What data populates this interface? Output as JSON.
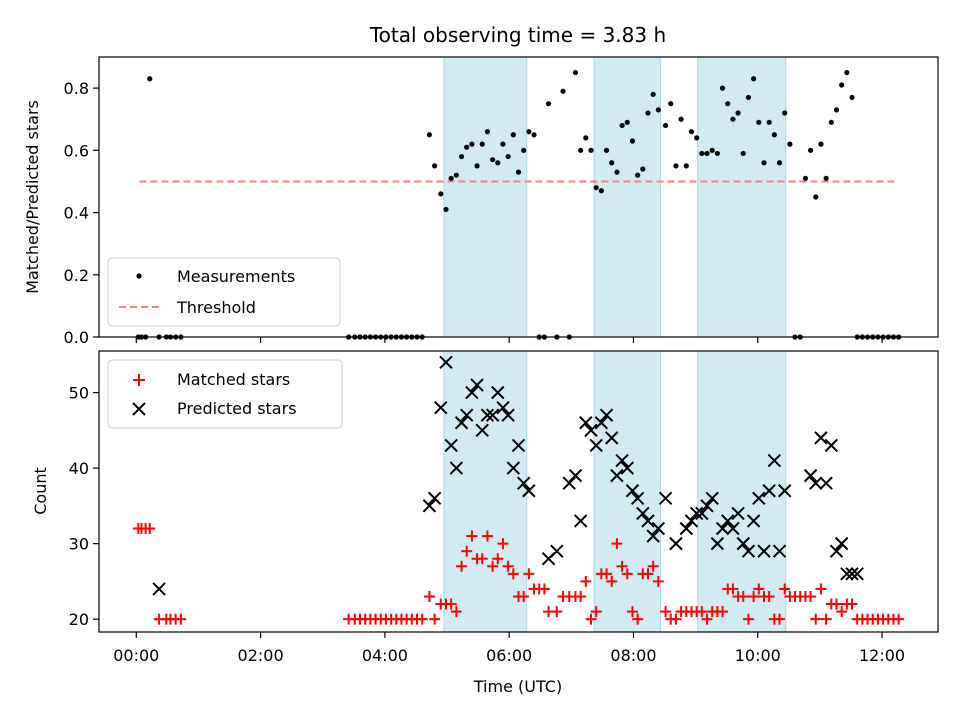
{
  "chart_data": [
    {
      "type": "scatter",
      "title": "Total observing time = 3.83 h",
      "xlabel": "",
      "ylabel": "Matched/Predicted stars",
      "xlim_hours": [
        -0.6,
        12.9
      ],
      "ylim": [
        0,
        0.9
      ],
      "yticks": [
        0.0,
        0.2,
        0.4,
        0.6,
        0.8
      ],
      "x_ticks_labels": false,
      "legend_position": "lower-left",
      "threshold": {
        "name": "Threshold",
        "value": 0.5,
        "x": [
          "00:03",
          "12:15"
        ],
        "color": "#ff7f7f",
        "style": "dashed"
      },
      "observing_windows": [
        [
          "04:57",
          "06:17"
        ],
        [
          "07:22",
          "08:26"
        ],
        [
          "09:02",
          "10:27"
        ]
      ],
      "window_color": "#add8e6",
      "series": [
        {
          "name": "Measurements",
          "color": "#000000",
          "marker": "dot",
          "x": [
            "00:02",
            "00:05",
            "00:09",
            "00:13",
            "00:22",
            "00:29",
            "00:33",
            "00:38",
            "00:43",
            "03:25",
            "03:31",
            "03:36",
            "03:41",
            "03:46",
            "03:51",
            "03:56",
            "04:01",
            "04:06",
            "04:11",
            "04:16",
            "04:21",
            "04:26",
            "04:31",
            "04:36",
            "04:43",
            "04:48",
            "04:54",
            "04:59",
            "05:04",
            "05:09",
            "05:14",
            "05:19",
            "05:24",
            "05:29",
            "05:34",
            "05:39",
            "05:44",
            "05:49",
            "05:54",
            "05:59",
            "06:04",
            "06:09",
            "06:14",
            "06:19",
            "06:24",
            "06:29",
            "06:34",
            "06:38",
            "06:46",
            "06:52",
            "06:58",
            "07:04",
            "07:09",
            "07:14",
            "07:19",
            "07:24",
            "07:29",
            "07:34",
            "07:39",
            "07:44",
            "07:49",
            "07:54",
            "07:59",
            "08:04",
            "08:09",
            "08:14",
            "08:19",
            "08:24",
            "08:31",
            "08:36",
            "08:41",
            "08:46",
            "08:51",
            "08:56",
            "09:01",
            "09:06",
            "09:11",
            "09:16",
            "09:21",
            "09:26",
            "09:31",
            "09:36",
            "09:41",
            "09:46",
            "09:51",
            "09:56",
            "10:01",
            "10:06",
            "10:11",
            "10:16",
            "10:21",
            "10:26",
            "10:31",
            "10:36",
            "10:41",
            "10:46",
            "10:51",
            "10:56",
            "11:01",
            "11:06",
            "11:11",
            "11:16",
            "11:21",
            "11:26",
            "11:31",
            "11:36",
            "11:41",
            "11:46",
            "11:51",
            "11:56",
            "12:01",
            "12:06",
            "12:11",
            "12:16"
          ],
          "y": [
            0,
            0,
            0,
            0.83,
            0,
            0,
            0,
            0,
            0,
            0,
            0,
            0,
            0,
            0,
            0,
            0,
            0,
            0,
            0,
            0,
            0,
            0,
            0,
            0,
            0.65,
            0.55,
            0.46,
            0.41,
            0.51,
            0.52,
            0.58,
            0.61,
            0.62,
            0.55,
            0.62,
            0.66,
            0.57,
            0.56,
            0.62,
            0.58,
            0.65,
            0.53,
            0.6,
            0.66,
            0.65,
            0,
            0,
            0.75,
            0,
            0.79,
            0,
            0.85,
            0.6,
            0.64,
            0.6,
            0.48,
            0.47,
            0.6,
            0.56,
            0.53,
            0.68,
            0.69,
            0.63,
            0.52,
            0.54,
            0.72,
            0.78,
            0.73,
            0.68,
            0.75,
            0.55,
            0.7,
            0.55,
            0.66,
            0.64,
            0.59,
            0.59,
            0.6,
            0.59,
            0.8,
            0.75,
            0.7,
            0.72,
            0.59,
            0.77,
            0.83,
            0.69,
            0.56,
            0.69,
            0.65,
            0.56,
            0.72,
            0.62,
            0,
            0,
            0.51,
            0.6,
            0.45,
            0.62,
            0.51,
            0.69,
            0.73,
            0.81,
            0.85,
            0.77,
            0,
            0,
            0,
            0,
            0,
            0,
            0,
            0,
            0
          ]
        },
        {
          "name": "Threshold",
          "color": "#ff7f7f",
          "style": "dashed"
        }
      ]
    },
    {
      "type": "scatter",
      "title": "",
      "xlabel": "Time (UTC)",
      "ylabel": "Count",
      "xlim_hours": [
        -0.6,
        12.9
      ],
      "ylim": [
        18.3,
        55.5
      ],
      "yticks": [
        20,
        30,
        40,
        50
      ],
      "xticks": [
        "00:00",
        "02:00",
        "04:00",
        "06:00",
        "08:00",
        "10:00",
        "12:00"
      ],
      "legend_position": "upper-left",
      "observing_windows": [
        [
          "04:57",
          "06:17"
        ],
        [
          "07:22",
          "08:26"
        ],
        [
          "09:02",
          "10:27"
        ]
      ],
      "series": [
        {
          "name": "Matched stars",
          "color": "#ff0000",
          "marker": "plus",
          "x": [
            "00:02",
            "00:05",
            "00:09",
            "00:13",
            "00:22",
            "00:29",
            "00:33",
            "00:38",
            "00:43",
            "03:25",
            "03:31",
            "03:36",
            "03:41",
            "03:46",
            "03:51",
            "03:56",
            "04:01",
            "04:06",
            "04:11",
            "04:16",
            "04:21",
            "04:26",
            "04:31",
            "04:36",
            "04:43",
            "04:48",
            "04:54",
            "04:59",
            "05:04",
            "05:09",
            "05:14",
            "05:19",
            "05:24",
            "05:29",
            "05:34",
            "05:39",
            "05:44",
            "05:49",
            "05:54",
            "05:59",
            "06:04",
            "06:09",
            "06:14",
            "06:19",
            "06:24",
            "06:29",
            "06:34",
            "06:38",
            "06:46",
            "06:52",
            "06:58",
            "07:04",
            "07:09",
            "07:14",
            "07:19",
            "07:24",
            "07:29",
            "07:34",
            "07:39",
            "07:44",
            "07:49",
            "07:54",
            "07:59",
            "08:04",
            "08:09",
            "08:14",
            "08:19",
            "08:24",
            "08:31",
            "08:36",
            "08:41",
            "08:46",
            "08:51",
            "08:56",
            "09:01",
            "09:06",
            "09:11",
            "09:16",
            "09:21",
            "09:26",
            "09:31",
            "09:36",
            "09:41",
            "09:46",
            "09:51",
            "09:56",
            "10:01",
            "10:06",
            "10:11",
            "10:16",
            "10:21",
            "10:26",
            "10:31",
            "10:36",
            "10:41",
            "10:46",
            "10:51",
            "10:56",
            "11:01",
            "11:06",
            "11:11",
            "11:16",
            "11:21",
            "11:26",
            "11:31",
            "11:36",
            "11:41",
            "11:46",
            "11:51",
            "11:56",
            "12:01",
            "12:06",
            "12:11",
            "12:16"
          ],
          "y": [
            32,
            32,
            32,
            32,
            20,
            20,
            20,
            20,
            20,
            20,
            20,
            20,
            20,
            20,
            20,
            20,
            20,
            20,
            20,
            20,
            20,
            20,
            20,
            20,
            23,
            20,
            22,
            22,
            22,
            21,
            27,
            29,
            31,
            28,
            28,
            31,
            27,
            28,
            30,
            27,
            26,
            23,
            23,
            26,
            24,
            24,
            24,
            21,
            21,
            23,
            23,
            23,
            23,
            25,
            20,
            21,
            26,
            26,
            25,
            30,
            27,
            26,
            21,
            20,
            26,
            26,
            27,
            25,
            21,
            20,
            20,
            21,
            21,
            21,
            21,
            21,
            20,
            21,
            21,
            21,
            24,
            24,
            23,
            23,
            20,
            23,
            24,
            23,
            23,
            20,
            20,
            24,
            23,
            23,
            23,
            23,
            23,
            20,
            24,
            20,
            22,
            22,
            21,
            22,
            22,
            20,
            20,
            20,
            20,
            20,
            20,
            20,
            20,
            20
          ]
        },
        {
          "name": "Predicted stars",
          "color": "#000000",
          "marker": "x",
          "x": [
            "00:22",
            "04:43",
            "04:48",
            "04:54",
            "04:59",
            "05:04",
            "05:09",
            "05:14",
            "05:19",
            "05:24",
            "05:29",
            "05:34",
            "05:39",
            "05:44",
            "05:49",
            "05:54",
            "05:59",
            "06:04",
            "06:09",
            "06:14",
            "06:19",
            "06:38",
            "06:46",
            "06:58",
            "07:04",
            "07:09",
            "07:14",
            "07:19",
            "07:24",
            "07:29",
            "07:34",
            "07:39",
            "07:44",
            "07:49",
            "07:54",
            "07:59",
            "08:04",
            "08:09",
            "08:14",
            "08:19",
            "08:24",
            "08:31",
            "08:41",
            "08:51",
            "08:56",
            "09:01",
            "09:06",
            "09:11",
            "09:16",
            "09:21",
            "09:26",
            "09:31",
            "09:36",
            "09:41",
            "09:46",
            "09:51",
            "09:56",
            "10:01",
            "10:06",
            "10:11",
            "10:16",
            "10:21",
            "10:26",
            "10:51",
            "10:56",
            "11:01",
            "11:06",
            "11:11",
            "11:16",
            "11:21",
            "11:26",
            "11:31",
            "11:36"
          ],
          "y": [
            24,
            35,
            36,
            48,
            54,
            43,
            40,
            46,
            47,
            50,
            51,
            45,
            47,
            47,
            50,
            48,
            47,
            40,
            43,
            38,
            37,
            28,
            29,
            38,
            39,
            33,
            46,
            45,
            43,
            46,
            47,
            44,
            39,
            41,
            40,
            37,
            36,
            34,
            33,
            31,
            32,
            36,
            30,
            32,
            33,
            34,
            34,
            35,
            36,
            30,
            32,
            33,
            32,
            34,
            30,
            29,
            33,
            36,
            29,
            37,
            41,
            29,
            37,
            39,
            38,
            44,
            38,
            43,
            29,
            30,
            26,
            26,
            26
          ]
        }
      ]
    }
  ]
}
